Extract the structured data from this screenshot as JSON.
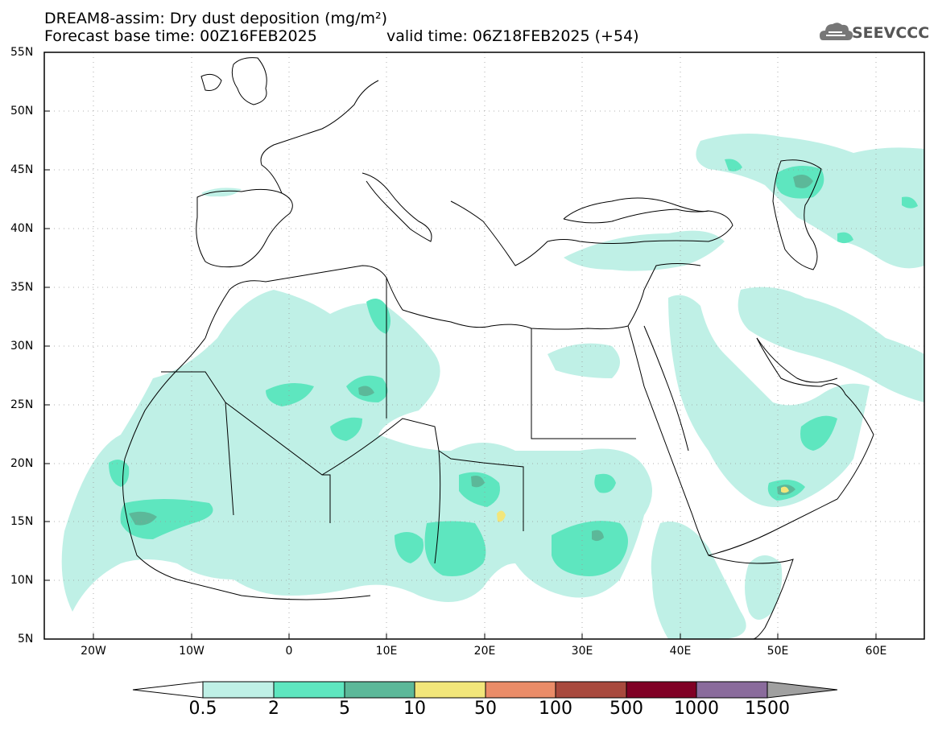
{
  "header": {
    "title": "DREAM8-assim: Dry dust deposition (mg/m²)",
    "base_time": "Forecast base time: 00Z16FEB2025",
    "valid_time": "valid time: 06Z18FEB2025 (+54)"
  },
  "logo": {
    "text": "SEEVCCC",
    "icon": "cloud-icon"
  },
  "axes": {
    "lat_labels": [
      "55N",
      "50N",
      "45N",
      "40N",
      "35N",
      "30N",
      "25N",
      "20N",
      "15N",
      "10N",
      "5N"
    ],
    "lon_labels": [
      "20W",
      "10W",
      "0",
      "10E",
      "20E",
      "30E",
      "40E",
      "50E",
      "60E"
    ],
    "lon_range": [
      -25,
      65
    ],
    "lat_range": [
      5,
      55
    ],
    "grid": true
  },
  "colorbar": {
    "labels": [
      "0.5",
      "2",
      "5",
      "10",
      "50",
      "100",
      "500",
      "1000",
      "1500"
    ],
    "colors": [
      "#bff0e6",
      "#5ee6bf",
      "#5cb899",
      "#f2e67a",
      "#ea8c68",
      "#a8493d",
      "#800025",
      "#8a6b9c"
    ],
    "under_color": "#ffffff",
    "over_color": "#a0a0a0"
  },
  "colors": {
    "level1": "#bff0e6",
    "level2": "#5ee6bf",
    "level3": "#5cb899",
    "level4": "#f2e67a"
  }
}
